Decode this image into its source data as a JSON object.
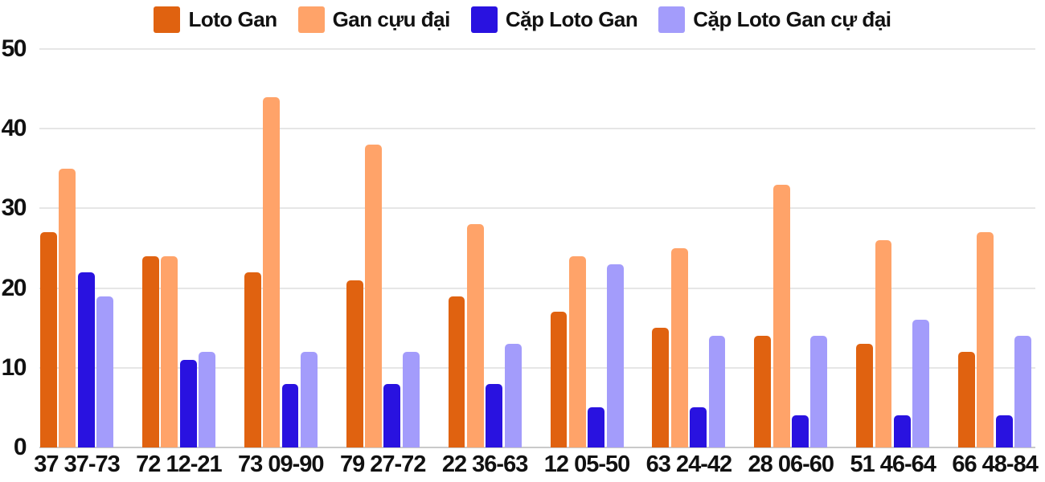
{
  "chart_data": {
    "type": "bar",
    "categories": [
      "37 37-73",
      "72 12-21",
      "73 09-90",
      "79 27-72",
      "22 36-63",
      "12 05-50",
      "63 24-42",
      "28 06-60",
      "51 46-64",
      "66 48-84"
    ],
    "series": [
      {
        "name": "Loto Gan",
        "color": "#e06210",
        "values": [
          27,
          24,
          22,
          21,
          19,
          17,
          15,
          14,
          13,
          12
        ]
      },
      {
        "name": "Gan cựu đại",
        "color": "#ffa369",
        "values": [
          35,
          24,
          44,
          38,
          28,
          24,
          25,
          33,
          26,
          27
        ]
      },
      {
        "name": "Cặp Loto Gan",
        "color": "#2912e0",
        "values": [
          22,
          11,
          8,
          8,
          8,
          5,
          5,
          4,
          4,
          4
        ]
      },
      {
        "name": "Cặp Loto Gan cự đại",
        "color": "#a39cfb",
        "values": [
          19,
          12,
          12,
          12,
          13,
          23,
          14,
          14,
          16,
          14
        ]
      }
    ],
    "title": "",
    "xlabel": "",
    "ylabel": "",
    "ylim": [
      0,
      50
    ],
    "yticks": [
      0,
      10,
      20,
      30,
      40,
      50
    ],
    "grid": true,
    "legend_position": "top"
  },
  "colors": {
    "grid": "#e6e6e6",
    "axis_baseline": "#c9c9c9",
    "text": "#111111",
    "background": "#ffffff"
  }
}
